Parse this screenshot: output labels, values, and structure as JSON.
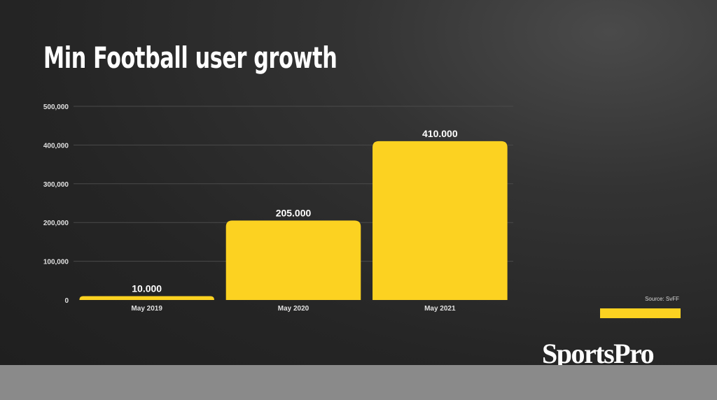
{
  "colors": {
    "bar": "#fcd221",
    "gridline": "#4a4a4a",
    "tick_text": "#e0e0e0",
    "value_text": "#ffffff",
    "band": "#8a8a8a"
  },
  "source": "Source: SvFF",
  "logo_text": "SportsPro",
  "chart_data": {
    "type": "bar",
    "title": "Min Football user growth",
    "categories": [
      "May 2019",
      "May 2020",
      "May 2021"
    ],
    "values": [
      10000,
      205000,
      410000
    ],
    "value_labels": [
      "10.000",
      "205.000",
      "410.000"
    ],
    "ylim": [
      0,
      500000
    ],
    "yticks": [
      0,
      100000,
      200000,
      300000,
      400000,
      500000
    ],
    "ytick_labels": [
      "0",
      "100,000",
      "200,000",
      "300,000",
      "400,000",
      "500,000"
    ],
    "xlabel": "",
    "ylabel": "",
    "grid": true,
    "legend": false
  }
}
